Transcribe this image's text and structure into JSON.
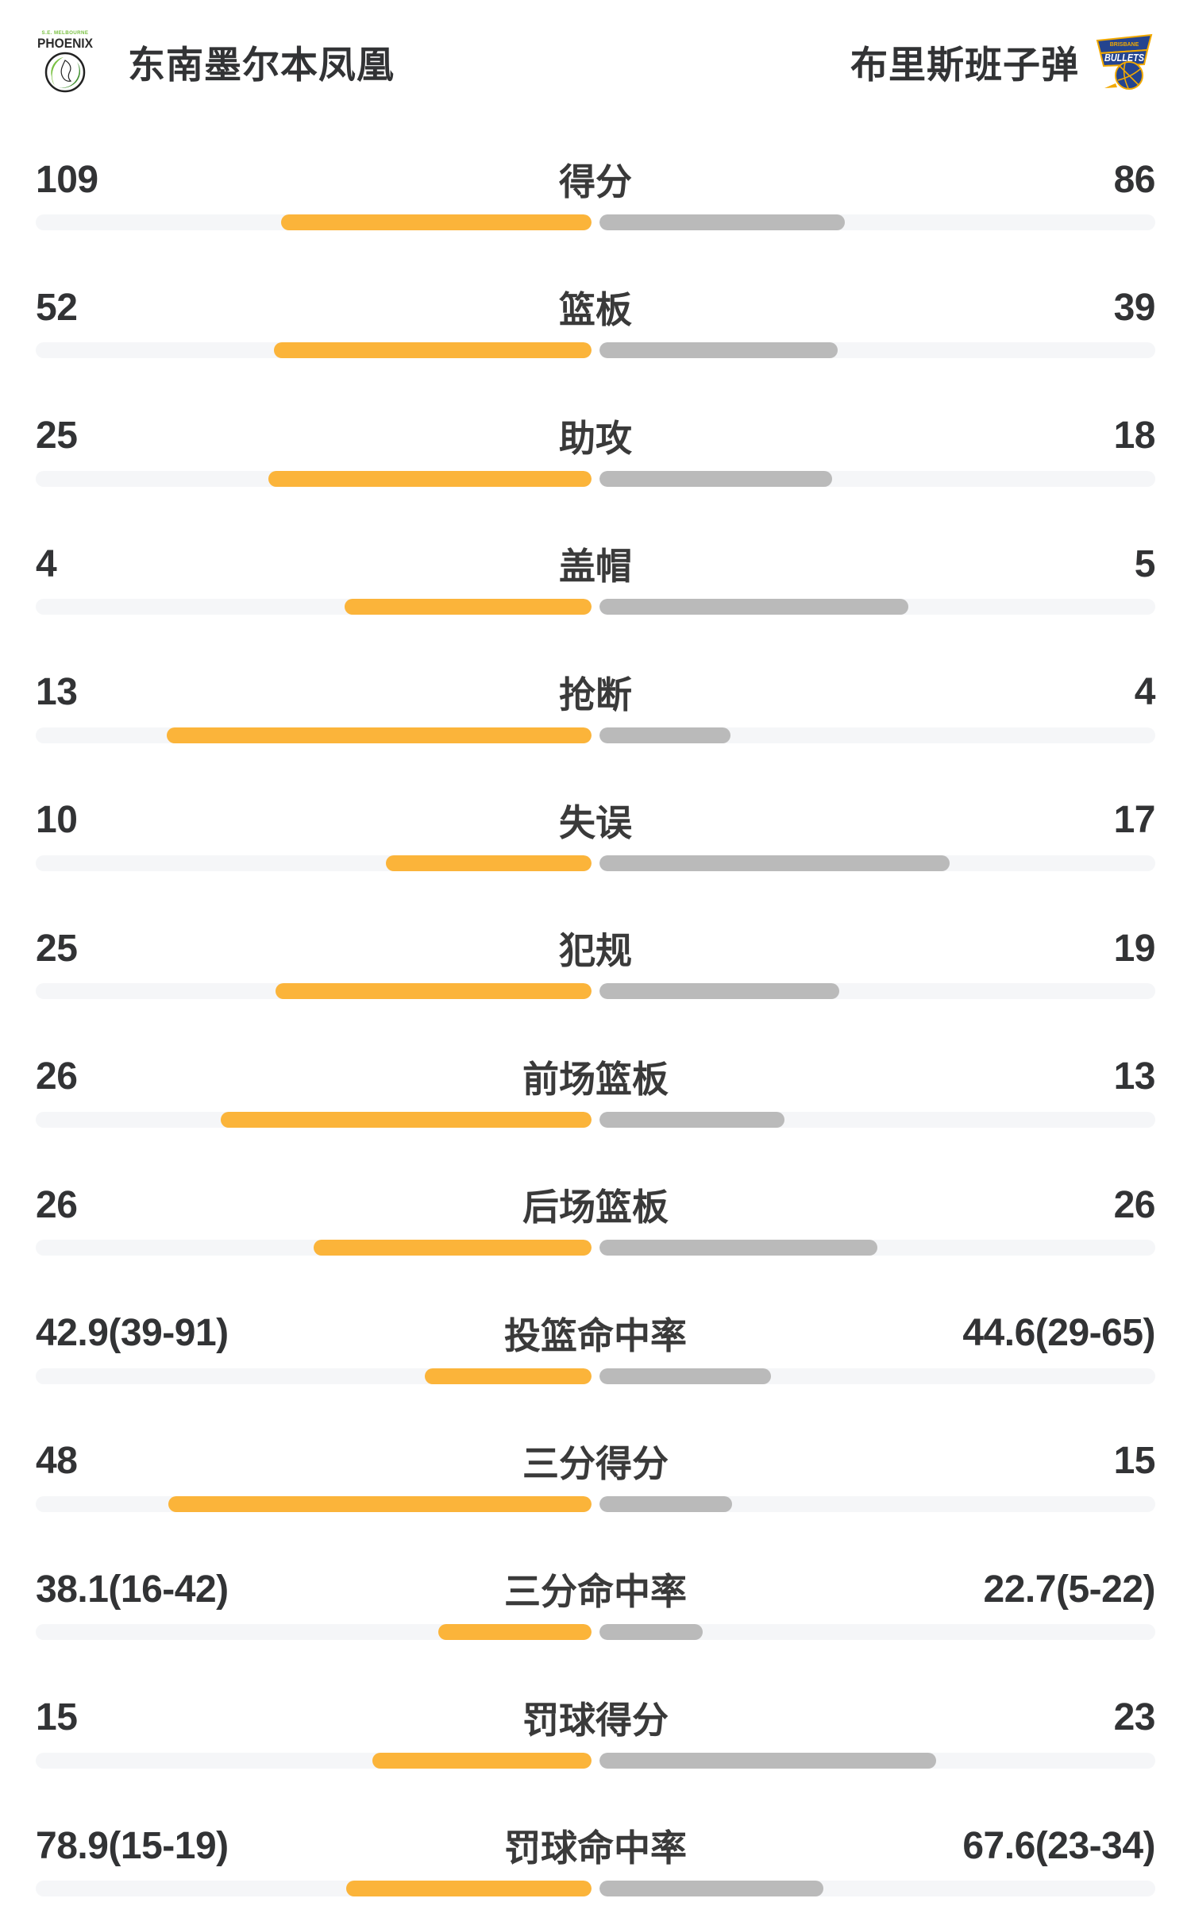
{
  "header": {
    "home": {
      "name": "东南墨尔本凤凰",
      "logo_top_text": "S.E. MELBOURNE",
      "logo_main_text": "PHOENIX"
    },
    "away": {
      "name": "布里斯班子弹",
      "logo_top_text": "BRISBANE",
      "logo_main_text": "BULLETS"
    }
  },
  "colors": {
    "home_bar": "#FBB43A",
    "away_bar": "#BABABA",
    "track": "#F5F6F8",
    "text": "#323335",
    "phoenix_green": "#7AC143",
    "phoenix_dark_green": "#3E8E2E",
    "bullets_navy": "#24448F",
    "bullets_gold": "#F2A900"
  },
  "chart_data": {
    "type": "bar",
    "subtype": "paired-horizontal-comparison",
    "series": [
      {
        "name": "东南墨尔本凤凰",
        "side": "left",
        "color": "#FBB43A"
      },
      {
        "name": "布里斯班子弹",
        "side": "right",
        "color": "#BABABA"
      }
    ],
    "bar_rule_note": "count rows: fill = value/(home+away); pct rows: fill = pct/(pct+100)",
    "rows": [
      {
        "label": "得分",
        "kind": "count",
        "home_text": "109",
        "away_text": "86",
        "home_value": 109,
        "away_value": 86
      },
      {
        "label": "篮板",
        "kind": "count",
        "home_text": "52",
        "away_text": "39",
        "home_value": 52,
        "away_value": 39
      },
      {
        "label": "助攻",
        "kind": "count",
        "home_text": "25",
        "away_text": "18",
        "home_value": 25,
        "away_value": 18
      },
      {
        "label": "盖帽",
        "kind": "count",
        "home_text": "4",
        "away_text": "5",
        "home_value": 4,
        "away_value": 5
      },
      {
        "label": "抢断",
        "kind": "count",
        "home_text": "13",
        "away_text": "4",
        "home_value": 13,
        "away_value": 4
      },
      {
        "label": "失误",
        "kind": "count",
        "home_text": "10",
        "away_text": "17",
        "home_value": 10,
        "away_value": 17
      },
      {
        "label": "犯规",
        "kind": "count",
        "home_text": "25",
        "away_text": "19",
        "home_value": 25,
        "away_value": 19
      },
      {
        "label": "前场篮板",
        "kind": "count",
        "home_text": "26",
        "away_text": "13",
        "home_value": 26,
        "away_value": 13
      },
      {
        "label": "后场篮板",
        "kind": "count",
        "home_text": "26",
        "away_text": "26",
        "home_value": 26,
        "away_value": 26
      },
      {
        "label": "投篮命中率",
        "kind": "pct",
        "home_text": "42.9(39-91)",
        "away_text": "44.6(29-65)",
        "home_value": 42.9,
        "away_value": 44.6
      },
      {
        "label": "三分得分",
        "kind": "count",
        "home_text": "48",
        "away_text": "15",
        "home_value": 48,
        "away_value": 15
      },
      {
        "label": "三分命中率",
        "kind": "pct",
        "home_text": "38.1(16-42)",
        "away_text": "22.7(5-22)",
        "home_value": 38.1,
        "away_value": 22.7
      },
      {
        "label": "罚球得分",
        "kind": "count",
        "home_text": "15",
        "away_text": "23",
        "home_value": 15,
        "away_value": 23
      },
      {
        "label": "罚球命中率",
        "kind": "pct",
        "home_text": "78.9(15-19)",
        "away_text": "67.6(23-34)",
        "home_value": 78.9,
        "away_value": 67.6
      }
    ]
  }
}
